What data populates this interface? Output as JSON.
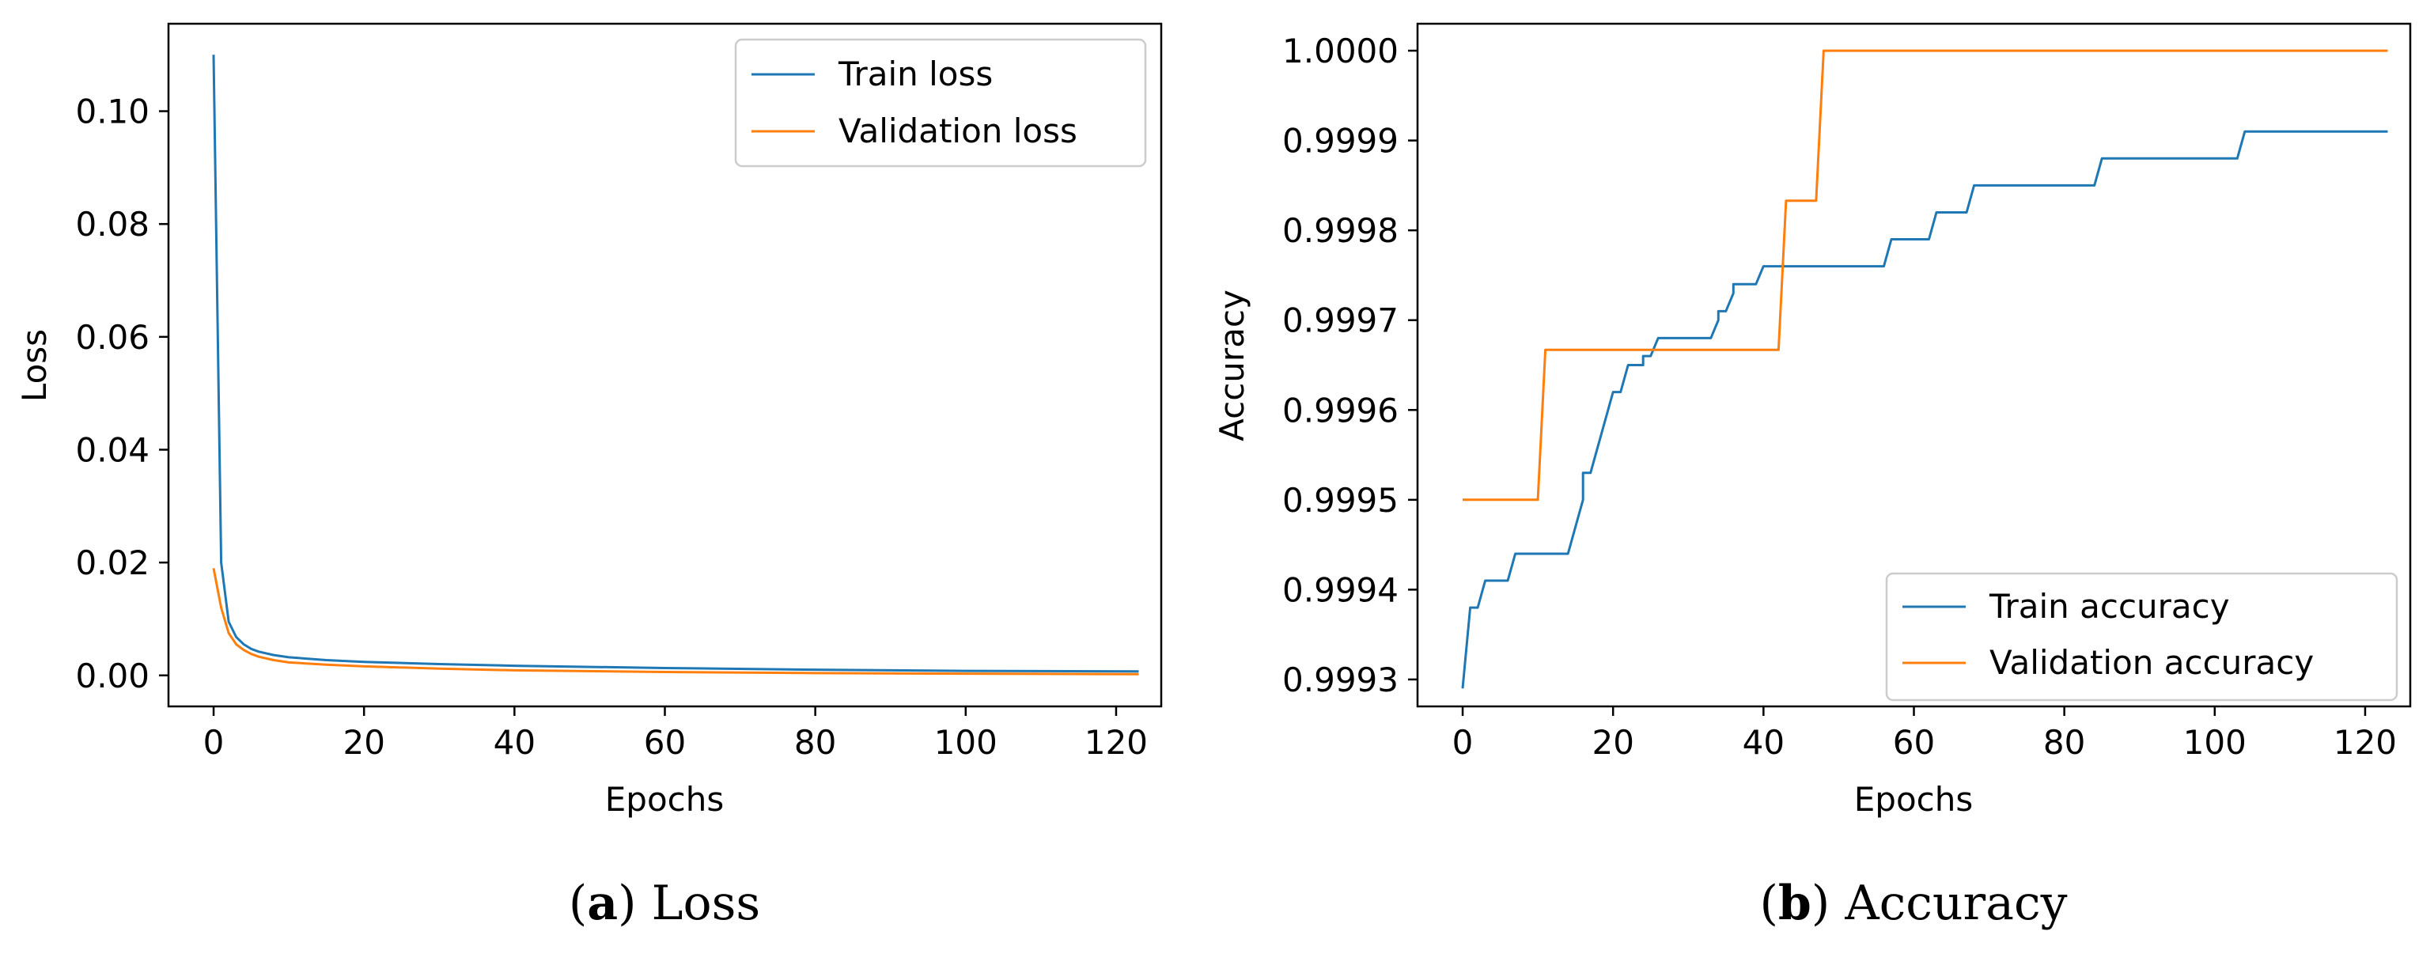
{
  "colors": {
    "train": "#1f77b4",
    "validation": "#ff7f0e",
    "axis": "#000000",
    "legend_border": "#cccccc"
  },
  "captions": {
    "a": {
      "paren_open": "(",
      "letter": "a",
      "paren_close": ")",
      "text": " Loss"
    },
    "b": {
      "paren_open": "(",
      "letter": "b",
      "paren_close": ")",
      "text": " Accuracy"
    }
  },
  "chart_data": [
    {
      "type": "line",
      "title": "",
      "xlabel": "Epochs",
      "ylabel": "Loss",
      "xlim": [
        -6,
        126
      ],
      "ylim": [
        -0.0055,
        0.1155
      ],
      "xticks": [
        0,
        20,
        40,
        60,
        80,
        100,
        120
      ],
      "xtick_labels": [
        "0",
        "20",
        "40",
        "60",
        "80",
        "100",
        "120"
      ],
      "yticks": [
        0.0,
        0.02,
        0.04,
        0.06,
        0.08,
        0.1
      ],
      "ytick_labels": [
        "0.00",
        "0.02",
        "0.04",
        "0.06",
        "0.08",
        "0.10"
      ],
      "legend": {
        "placement": "top-right",
        "entries": [
          "Train loss",
          "Validation loss"
        ]
      },
      "series": [
        {
          "name": "Train loss",
          "x": [
            0,
            1,
            2,
            3,
            4,
            5,
            6,
            8,
            10,
            15,
            20,
            30,
            40,
            60,
            80,
            100,
            123
          ],
          "values": [
            0.11,
            0.02,
            0.0095,
            0.0068,
            0.0055,
            0.0047,
            0.0042,
            0.0036,
            0.0032,
            0.0027,
            0.0024,
            0.002,
            0.0017,
            0.0013,
            0.001,
            0.0008,
            0.0007
          ]
        },
        {
          "name": "Validation loss",
          "x": [
            0,
            1,
            2,
            3,
            4,
            5,
            6,
            8,
            10,
            15,
            20,
            30,
            40,
            60,
            80,
            100,
            123
          ],
          "values": [
            0.019,
            0.012,
            0.0075,
            0.0055,
            0.0045,
            0.0038,
            0.0033,
            0.0027,
            0.0023,
            0.0019,
            0.0016,
            0.0012,
            0.0009,
            0.0006,
            0.0004,
            0.0003,
            0.0002
          ]
        }
      ]
    },
    {
      "type": "line",
      "title": "",
      "xlabel": "Epochs",
      "ylabel": "Accuracy",
      "xlim": [
        -6,
        126
      ],
      "ylim": [
        0.99927,
        1.00003
      ],
      "xticks": [
        0,
        20,
        40,
        60,
        80,
        100,
        120
      ],
      "xtick_labels": [
        "0",
        "20",
        "40",
        "60",
        "80",
        "100",
        "120"
      ],
      "yticks": [
        0.9993,
        0.9994,
        0.9995,
        0.9996,
        0.9997,
        0.9998,
        0.9999,
        1.0
      ],
      "ytick_labels": [
        "0.9993",
        "0.9994",
        "0.9995",
        "0.9996",
        "0.9997",
        "0.9998",
        "0.9999",
        "1.0000"
      ],
      "legend": {
        "placement": "bottom-right",
        "entries": [
          "Train accuracy",
          "Validation accuracy"
        ]
      },
      "series": [
        {
          "name": "Train accuracy",
          "x": [
            0,
            1,
            1,
            2,
            3,
            3,
            6,
            7,
            7,
            14,
            15,
            15,
            16,
            16,
            17,
            18,
            19,
            20,
            20,
            21,
            22,
            22,
            23,
            24,
            24,
            25,
            26,
            26,
            33,
            34,
            34,
            35,
            36,
            36,
            39,
            40,
            40,
            56,
            57,
            57,
            62,
            63,
            63,
            67,
            68,
            68,
            84,
            85,
            85,
            103,
            104,
            104,
            123
          ],
          "values": [
            0.99929,
            0.99938,
            0.99938,
            0.99938,
            0.99941,
            0.99941,
            0.99941,
            0.99944,
            0.99944,
            0.99944,
            0.99947,
            0.99947,
            0.9995,
            0.99953,
            0.99953,
            0.99956,
            0.99959,
            0.99962,
            0.99962,
            0.99962,
            0.99965,
            0.99965,
            0.99965,
            0.99965,
            0.99966,
            0.99966,
            0.99968,
            0.99968,
            0.99968,
            0.9997,
            0.99971,
            0.99971,
            0.99973,
            0.99974,
            0.99974,
            0.99976,
            0.99976,
            0.99976,
            0.99979,
            0.99979,
            0.99979,
            0.99982,
            0.99982,
            0.99982,
            0.99985,
            0.99985,
            0.99985,
            0.99988,
            0.99988,
            0.99988,
            0.99991,
            0.99991,
            0.99991
          ]
        },
        {
          "name": "Validation accuracy",
          "x": [
            0,
            10,
            11,
            42,
            43,
            47,
            48,
            123
          ],
          "values": [
            0.9995,
            0.9995,
            0.999667,
            0.999667,
            0.999833,
            0.999833,
            1.0,
            1.0
          ]
        }
      ]
    }
  ]
}
